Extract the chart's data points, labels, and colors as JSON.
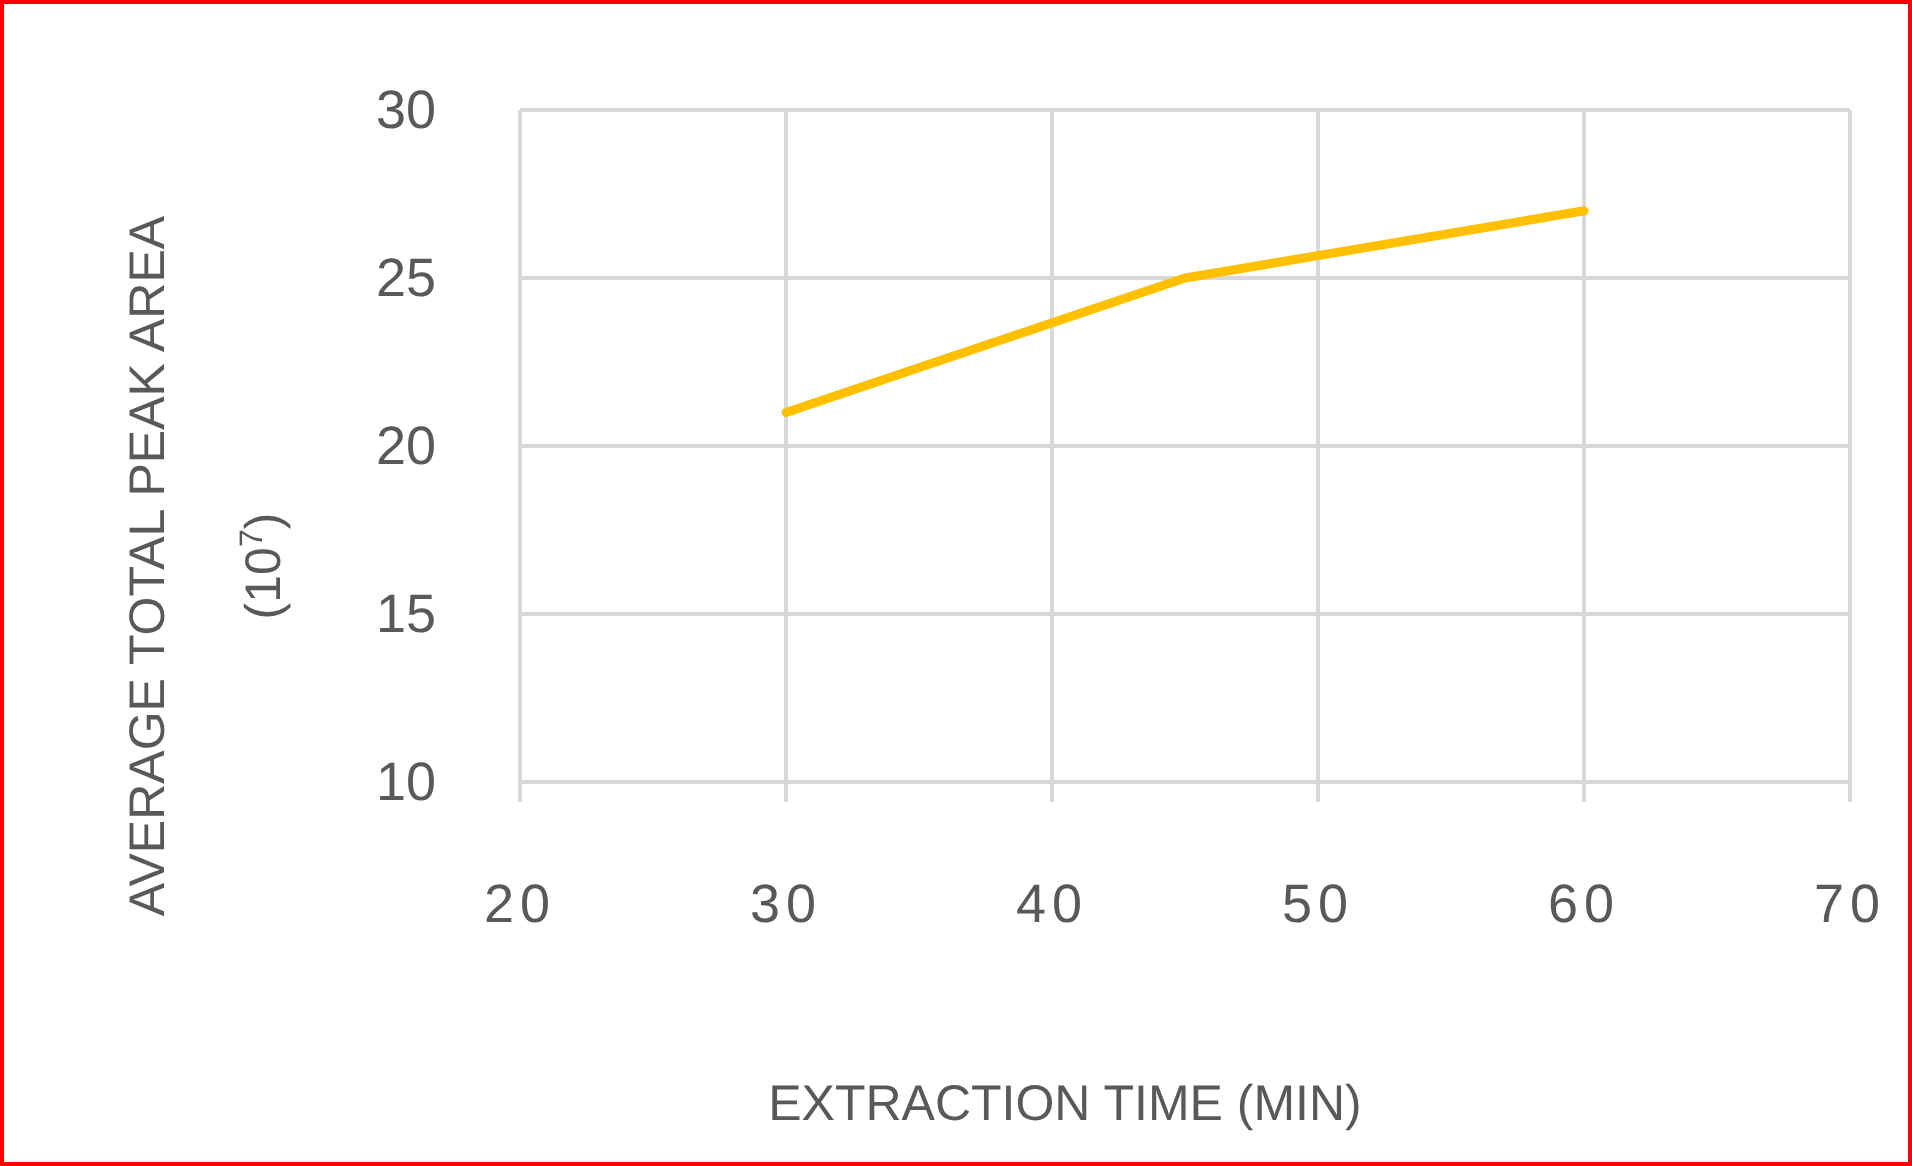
{
  "chart_data": {
    "type": "line",
    "xlabel": "EXTRACTION TIME (MIN)",
    "ylabel": "AVERAGE TOTAL PEAK AREA (10$^{7}$)",
    "x": [
      30,
      45,
      60
    ],
    "series": [
      {
        "color": "#ffc000",
        "values": [
          21,
          25,
          27
        ]
      }
    ],
    "xlim": [
      20,
      70
    ],
    "xticks": [
      20,
      30,
      40,
      50,
      60,
      70
    ],
    "ylim": [
      10,
      30
    ],
    "yticks": [
      10,
      15,
      20,
      25,
      30
    ],
    "grid": true,
    "marker": "none",
    "line_style": "solid"
  }
}
